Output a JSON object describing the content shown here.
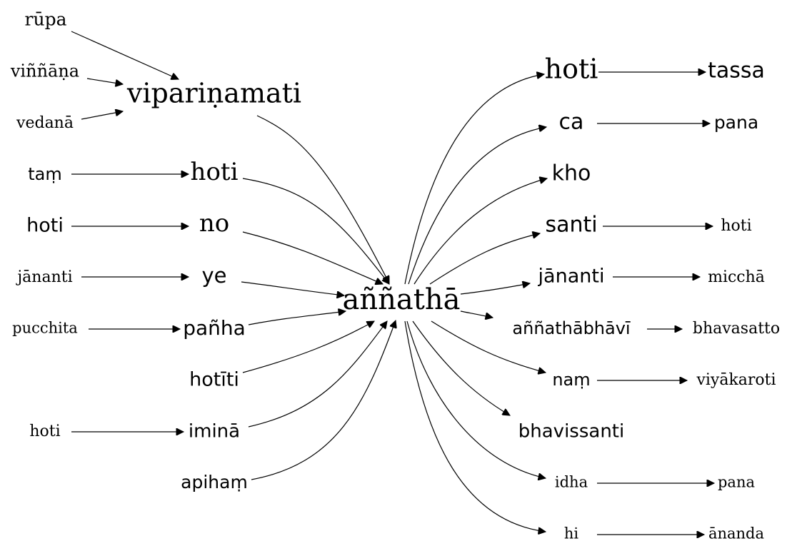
{
  "nodes": {
    "rupa": "rūpa",
    "vinnana": "viññāṇa",
    "vedana": "vedanā",
    "viparinamati": "vipariṇamati",
    "tam": "taṃ",
    "hoti_l1": "hoti",
    "hoti_l2": "hoti",
    "no": "no",
    "jananti_l": "jānanti",
    "ye": "ye",
    "pucchita": "pucchita",
    "panha": "pañha",
    "hotiti": "hotīti",
    "hoti_l3": "hoti",
    "imina": "iminā",
    "apiham": "apihaṃ",
    "annatha": "aññathā",
    "hoti_r": "hoti",
    "tassa": "tassa",
    "ca": "ca",
    "pana_1": "pana",
    "kho": "kho",
    "santi": "santi",
    "hoti_r2": "hoti",
    "jananti_r": "jānanti",
    "miccha": "micchā",
    "annathabhavi": "aññathābhāvī",
    "bhavasatto": "bhavasatto",
    "nam": "naṃ",
    "viyakaroti": "viyākaroti",
    "bhavissanti": "bhavissanti",
    "idha": "idha",
    "pana_2": "pana",
    "hi": "hi",
    "ananda": "ānanda"
  }
}
